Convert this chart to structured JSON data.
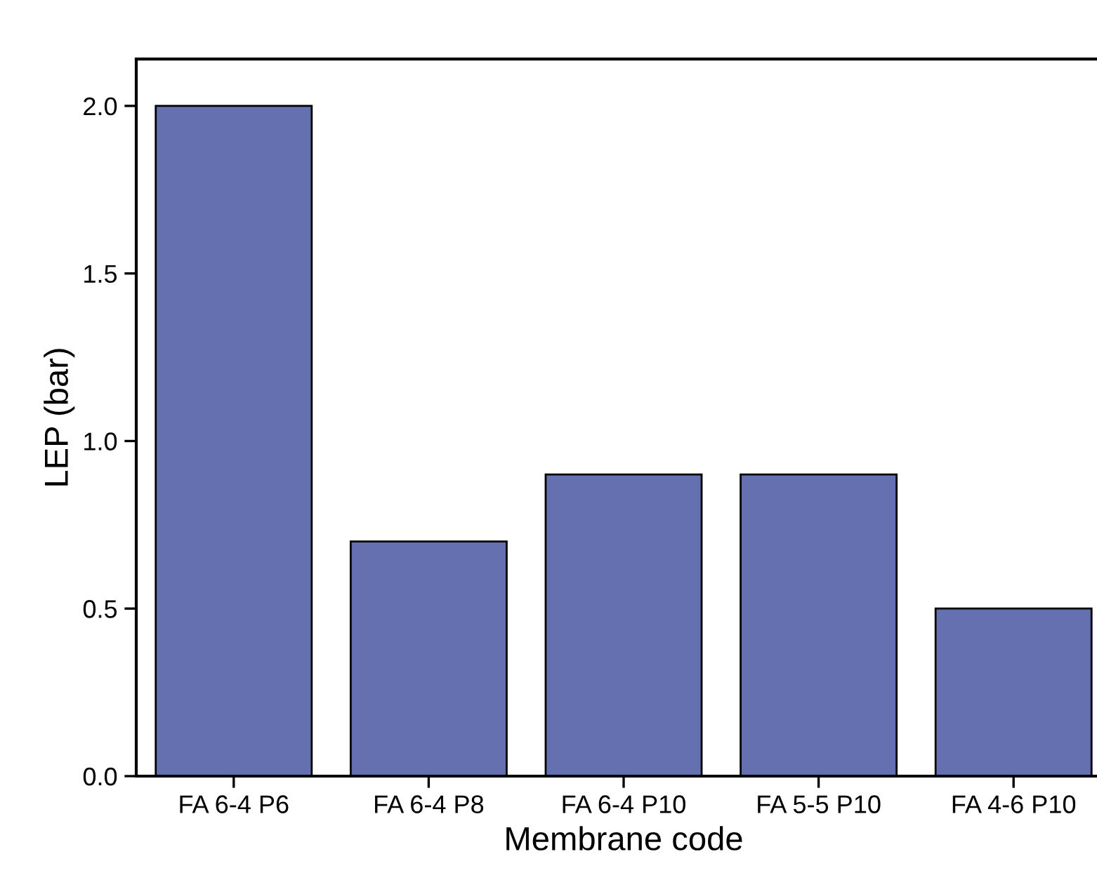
{
  "chart_data": {
    "type": "bar",
    "xlabel": "Membrane code",
    "ylabel": "LEP (bar)",
    "categories": [
      "FA 6-4 P6",
      "FA 6-4 P8",
      "FA 6-4 P10",
      "FA 5-5 P10",
      "FA 4-6 P10"
    ],
    "values": [
      2.0,
      0.7,
      0.9,
      0.9,
      0.5
    ],
    "color": "#6470b0",
    "ylim": [
      0,
      2.14
    ],
    "yticks": [
      {
        "value": 0,
        "label": "0.0"
      },
      0.5,
      {
        "value": 1,
        "label": "1.0"
      },
      1.5,
      {
        "value": 2,
        "label": "2.0"
      }
    ],
    "grid": false,
    "legend": false
  }
}
